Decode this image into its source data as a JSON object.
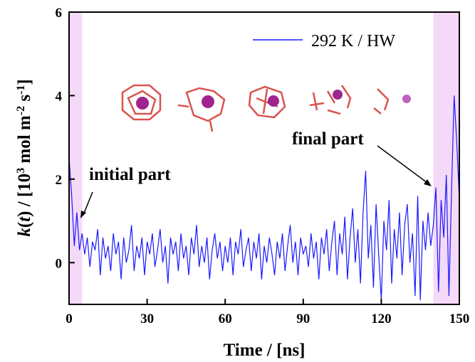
{
  "chart_data": {
    "type": "line",
    "x_label": "Time / [ns]",
    "y_label": [
      "k",
      "(",
      "t",
      ") / [10",
      "3",
      " mol m",
      "-2",
      " s",
      "-1",
      "]"
    ],
    "xlim": [
      0,
      150
    ],
    "xticks": [
      0,
      30,
      60,
      90,
      120,
      150
    ],
    "ylim": [
      -1,
      6
    ],
    "yticks": [
      0,
      2,
      4,
      6
    ],
    "shaded_regions": [
      [
        0,
        5
      ],
      [
        140,
        150
      ]
    ],
    "shade_color": "#f5d9f8",
    "legend": "upper right",
    "annotations": [
      "initial part",
      "final part"
    ],
    "x": [
      0,
      1,
      2,
      3,
      4,
      5,
      6,
      7,
      8,
      9,
      10,
      11,
      12,
      13,
      14,
      15,
      16,
      17,
      18,
      19,
      20,
      21,
      22,
      23,
      24,
      25,
      26,
      27,
      28,
      29,
      30,
      31,
      32,
      33,
      34,
      35,
      36,
      37,
      38,
      39,
      40,
      41,
      42,
      43,
      44,
      45,
      46,
      47,
      48,
      49,
      50,
      51,
      52,
      53,
      54,
      55,
      56,
      57,
      58,
      59,
      60,
      61,
      62,
      63,
      64,
      65,
      66,
      67,
      68,
      69,
      70,
      71,
      72,
      73,
      74,
      75,
      76,
      77,
      78,
      79,
      80,
      81,
      82,
      83,
      84,
      85,
      86,
      87,
      88,
      89,
      90,
      91,
      92,
      93,
      94,
      95,
      96,
      97,
      98,
      99,
      100,
      101,
      102,
      103,
      104,
      105,
      106,
      107,
      108,
      109,
      110,
      111,
      112,
      113,
      114,
      115,
      116,
      117,
      118,
      119,
      120,
      121,
      122,
      123,
      124,
      125,
      126,
      127,
      128,
      129,
      130,
      131,
      132,
      133,
      134,
      135,
      136,
      137,
      138,
      139,
      140,
      141,
      142,
      143,
      144,
      145,
      146,
      147,
      148,
      149,
      150
    ],
    "series": [
      {
        "name": "292 K / HW",
        "color": "#1a1aff",
        "values": [
          2.5,
          1.6,
          0.4,
          1.2,
          0.3,
          0.7,
          0.2,
          0.6,
          -0.1,
          0.5,
          0.3,
          0.8,
          -0.3,
          0.6,
          0.1,
          0.4,
          -0.2,
          0.7,
          0.2,
          0.5,
          -0.4,
          0.6,
          0.0,
          0.3,
          0.9,
          -0.2,
          0.4,
          0.1,
          0.6,
          -0.3,
          0.5,
          0.2,
          0.7,
          -0.1,
          0.3,
          0.8,
          0.0,
          0.4,
          -0.5,
          0.6,
          0.2,
          0.5,
          -0.2,
          0.7,
          0.1,
          0.4,
          -0.3,
          0.6,
          0.2,
          0.9,
          -0.1,
          0.4,
          0.0,
          0.6,
          -0.4,
          0.3,
          0.7,
          0.1,
          0.5,
          -0.2,
          0.4,
          0.0,
          0.6,
          -0.3,
          0.5,
          0.2,
          0.8,
          -0.1,
          0.3,
          0.6,
          -0.2,
          0.5,
          0.1,
          0.7,
          -0.4,
          0.4,
          0.0,
          0.6,
          0.2,
          -0.3,
          0.5,
          0.1,
          0.7,
          -0.2,
          0.4,
          0.9,
          0.0,
          0.5,
          -0.3,
          0.6,
          0.2,
          0.4,
          -0.1,
          0.7,
          0.1,
          0.5,
          -0.4,
          0.6,
          0.2,
          0.8,
          -0.2,
          0.5,
          1.0,
          -0.3,
          0.7,
          0.2,
          1.1,
          -0.4,
          0.6,
          1.3,
          0.0,
          0.8,
          -0.5,
          1.2,
          2.2,
          0.1,
          0.9,
          -0.6,
          1.4,
          0.2,
          -0.9,
          1.0,
          0.3,
          1.5,
          -0.5,
          0.8,
          0.1,
          1.2,
          -0.3,
          0.9,
          1.4,
          0.0,
          0.7,
          -0.8,
          1.6,
          -0.9,
          1.0,
          0.3,
          1.2,
          0.4,
          0.9,
          1.8,
          -0.7,
          1.5,
          0.6,
          2.1,
          -0.8,
          1.7,
          4.0,
          2.9,
          1.5
        ]
      }
    ]
  }
}
